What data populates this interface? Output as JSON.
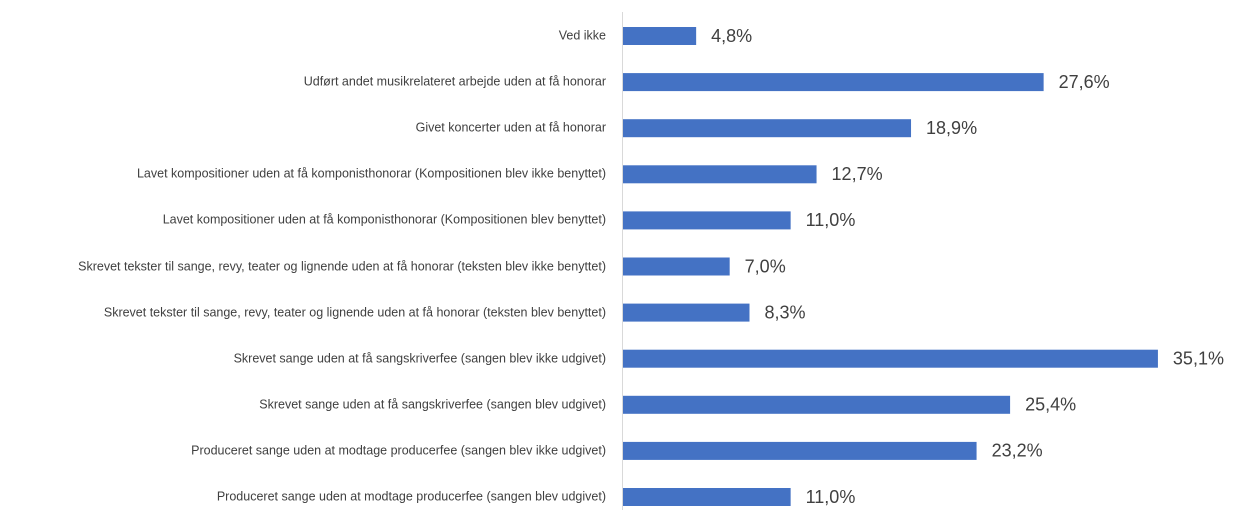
{
  "chart_data": {
    "type": "bar",
    "orientation": "horizontal",
    "color": "#4472c4",
    "categories": [
      "Ved ikke",
      "Udført andet musikrelateret arbejde uden at få honorar",
      "Givet koncerter uden at få honorar",
      "Lavet kompositioner uden at få komponisthonorar (Kompositionen blev ikke benyttet)",
      "Lavet kompositioner uden at få komponisthonorar (Kompositionen blev benyttet)",
      "Skrevet tekster til sange, revy, teater og lignende uden at få honorar (teksten blev ikke benyttet)",
      "Skrevet tekster til sange, revy, teater og lignende uden at få honorar (teksten blev benyttet)",
      "Skrevet sange uden at få sangskriverfee (sangen blev ikke udgivet)",
      "Skrevet sange uden at få sangskriverfee (sangen blev udgivet)",
      "Produceret sange uden at modtage producerfee (sangen blev ikke udgivet)",
      "Produceret sange uden at modtage producerfee (sangen blev udgivet)"
    ],
    "values": [
      4.8,
      27.6,
      18.9,
      12.7,
      11.0,
      7.0,
      8.3,
      35.1,
      25.4,
      23.2,
      11.0
    ],
    "value_labels": [
      "4,8%",
      "27,6%",
      "18,9%",
      "12,7%",
      "11,0%",
      "7,0%",
      "8,3%",
      "35,1%",
      "25,4%",
      "23,2%",
      "11,0%"
    ]
  }
}
